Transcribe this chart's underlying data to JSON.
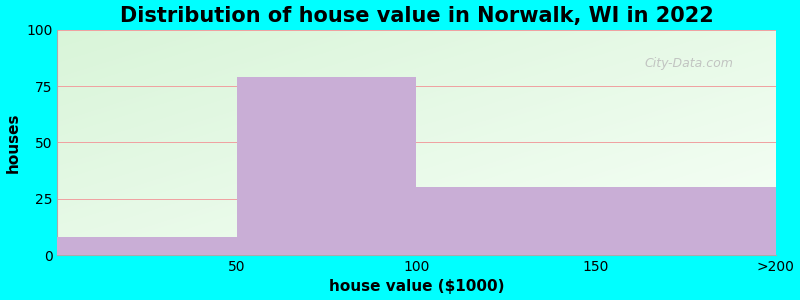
{
  "title": "Distribution of house value in Norwalk, WI in 2022",
  "xlabel": "house value ($1000)",
  "ylabel": "houses",
  "categories": [
    "50",
    "100",
    "150",
    ">200"
  ],
  "values": [
    8,
    79,
    30,
    30
  ],
  "bar_color": "#c9aed6",
  "bar_edge_color": "#c9aed6",
  "ylim": [
    0,
    100
  ],
  "yticks": [
    0,
    25,
    50,
    75,
    100
  ],
  "figure_bg": "#00ffff",
  "grid_color": "#f0a0a0",
  "title_fontsize": 15,
  "axis_fontsize": 11,
  "tick_fontsize": 10,
  "bar_width": 1.0,
  "watermark": "City-Data.com"
}
